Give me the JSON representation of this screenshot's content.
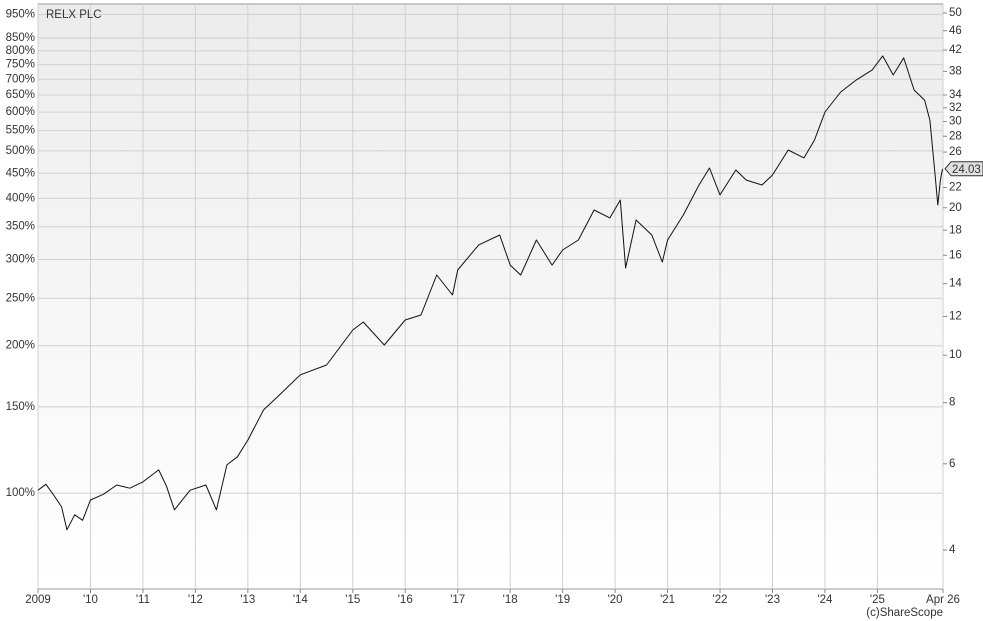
{
  "chart_data": {
    "type": "line",
    "title": "RELX PLC",
    "source": "(c)ShareScope",
    "log_scale": true,
    "grid": true,
    "xlim": [
      2009,
      2026.25
    ],
    "xticks": [
      {
        "value": 2009,
        "label": "2009"
      },
      {
        "value": 2010,
        "label": "'10"
      },
      {
        "value": 2011,
        "label": "'11"
      },
      {
        "value": 2012,
        "label": "'12"
      },
      {
        "value": 2013,
        "label": "'13"
      },
      {
        "value": 2014,
        "label": "'14"
      },
      {
        "value": 2015,
        "label": "'15"
      },
      {
        "value": 2016,
        "label": "'16"
      },
      {
        "value": 2017,
        "label": "'17"
      },
      {
        "value": 2018,
        "label": "'18"
      },
      {
        "value": 2019,
        "label": "'19"
      },
      {
        "value": 2020,
        "label": "'20"
      },
      {
        "value": 2021,
        "label": "'21"
      },
      {
        "value": 2022,
        "label": "'22"
      },
      {
        "value": 2023,
        "label": "'23"
      },
      {
        "value": 2024,
        "label": "'24"
      },
      {
        "value": 2025,
        "label": "'25"
      },
      {
        "value": 2026.25,
        "label": "Apr 26"
      }
    ],
    "ylim": [
      63.7,
      997.4
    ],
    "yticks": [
      {
        "value": 100,
        "label": "100%"
      },
      {
        "value": 150,
        "label": "150%"
      },
      {
        "value": 200,
        "label": "200%"
      },
      {
        "value": 250,
        "label": "250%"
      },
      {
        "value": 300,
        "label": "300%"
      },
      {
        "value": 350,
        "label": "350%"
      },
      {
        "value": 400,
        "label": "400%"
      },
      {
        "value": 450,
        "label": "450%"
      },
      {
        "value": 500,
        "label": "500%"
      },
      {
        "value": 550,
        "label": "550%"
      },
      {
        "value": 600,
        "label": "600%"
      },
      {
        "value": 650,
        "label": "650%"
      },
      {
        "value": 700,
        "label": "700%"
      },
      {
        "value": 750,
        "label": "750%"
      },
      {
        "value": 800,
        "label": "800%"
      },
      {
        "value": 850,
        "label": "850%"
      },
      {
        "value": 950,
        "label": "950%"
      }
    ],
    "y2lim": [
      3.33,
      52.16
    ],
    "y2ticks": [
      4,
      6,
      8,
      10,
      12,
      14,
      16,
      18,
      20,
      22,
      26,
      28,
      30,
      32,
      34,
      38,
      42,
      46,
      50
    ],
    "series": [
      {
        "name": "RELX PLC",
        "color": "#111111",
        "axis": "y2",
        "x": [
          2009.0,
          2009.15,
          2009.3,
          2009.45,
          2009.55,
          2009.7,
          2009.85,
          2010.0,
          2010.25,
          2010.5,
          2010.75,
          2011.0,
          2011.3,
          2011.45,
          2011.6,
          2011.9,
          2012.2,
          2012.4,
          2012.6,
          2012.8,
          2013.0,
          2013.3,
          2013.6,
          2014.0,
          2014.5,
          2015.0,
          2015.2,
          2015.6,
          2016.0,
          2016.3,
          2016.6,
          2016.9,
          2017.0,
          2017.4,
          2017.8,
          2018.0,
          2018.2,
          2018.5,
          2018.8,
          2019.0,
          2019.3,
          2019.6,
          2019.9,
          2020.1,
          2020.2,
          2020.4,
          2020.7,
          2020.9,
          2021.0,
          2021.3,
          2021.6,
          2021.8,
          2022.0,
          2022.3,
          2022.5,
          2022.8,
          2023.0,
          2023.3,
          2023.6,
          2023.8,
          2024.0,
          2024.3,
          2024.6,
          2024.9,
          2025.1,
          2025.3,
          2025.5,
          2025.7,
          2025.9,
          2026.0,
          2026.1,
          2026.15,
          2026.2,
          2026.24
        ],
        "values": [
          5.3,
          5.45,
          5.18,
          4.9,
          4.4,
          4.72,
          4.6,
          5.06,
          5.2,
          5.43,
          5.35,
          5.51,
          5.83,
          5.4,
          4.83,
          5.3,
          5.43,
          4.83,
          5.97,
          6.2,
          6.71,
          7.73,
          8.29,
          9.12,
          9.55,
          11.26,
          11.69,
          10.49,
          11.8,
          12.08,
          14.58,
          13.27,
          14.93,
          16.8,
          17.6,
          15.28,
          14.58,
          17.19,
          15.28,
          16.4,
          17.19,
          19.8,
          19.07,
          20.75,
          15.07,
          18.89,
          17.6,
          15.5,
          17.19,
          19.34,
          22.27,
          24.12,
          21.25,
          23.89,
          22.79,
          22.27,
          23.34,
          26.25,
          25.29,
          27.52,
          31.39,
          34.48,
          36.5,
          38.25,
          40.86,
          37.35,
          40.48,
          34.8,
          33.2,
          30.2,
          23.34,
          20.27,
          22.79,
          24.03
        ]
      }
    ]
  }
}
